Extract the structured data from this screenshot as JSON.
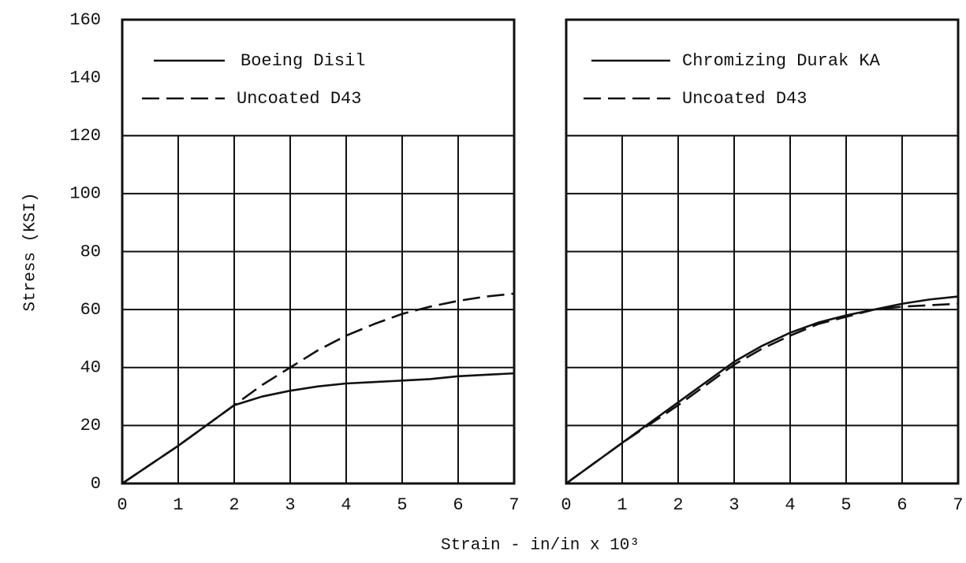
{
  "xlabel": "Strain - in/in x 10³",
  "chart_data": [
    {
      "type": "line",
      "ylabel": "Stress (KSI)",
      "x": [
        0,
        0.5,
        1,
        1.5,
        2,
        2.5,
        3,
        3.5,
        4,
        4.5,
        5,
        5.5,
        6,
        6.5,
        7
      ],
      "series": [
        {
          "name": "Boeing Disil",
          "color": "#111111",
          "linestyle": "solid",
          "values": [
            0,
            6.5,
            13,
            20,
            27,
            30,
            32,
            33.5,
            34.5,
            35,
            35.5,
            36,
            37,
            37.5,
            38
          ]
        },
        {
          "name": "Uncoated D43",
          "color": "#111111",
          "linestyle": "dashed",
          "values": [
            0,
            6.5,
            13,
            20,
            27,
            34,
            40,
            46,
            51,
            55,
            58.5,
            61,
            63,
            64.5,
            65.5
          ]
        }
      ],
      "xlim": [
        0,
        7
      ],
      "xticks": [
        0,
        1,
        2,
        3,
        4,
        5,
        6,
        7
      ],
      "ylim": [
        0,
        160
      ],
      "yticks": [
        0,
        20,
        40,
        60,
        80,
        100,
        120,
        140,
        160
      ],
      "show_ytick_labels": true,
      "grid": true
    },
    {
      "type": "line",
      "x": [
        0,
        0.5,
        1,
        1.5,
        2,
        2.5,
        3,
        3.5,
        4,
        4.5,
        5,
        5.5,
        6,
        6.5,
        7
      ],
      "series": [
        {
          "name": "Chromizing Durak KA",
          "color": "#111111",
          "linestyle": "solid",
          "values": [
            0,
            7,
            14,
            21,
            28,
            35,
            42,
            47.5,
            52,
            55.5,
            58,
            60,
            62,
            63.5,
            64.5
          ]
        },
        {
          "name": "Uncoated D43",
          "color": "#111111",
          "linestyle": "dashed",
          "values": [
            0,
            7,
            14,
            20.5,
            27,
            34,
            41,
            46.5,
            51,
            55,
            57.5,
            60,
            61,
            61.5,
            62
          ]
        }
      ],
      "xlim": [
        0,
        7
      ],
      "xticks": [
        0,
        1,
        2,
        3,
        4,
        5,
        6,
        7
      ],
      "ylim": [
        0,
        160
      ],
      "yticks": [
        0,
        20,
        40,
        60,
        80,
        100,
        120,
        140,
        160
      ],
      "show_ytick_labels": false,
      "grid": true
    }
  ]
}
